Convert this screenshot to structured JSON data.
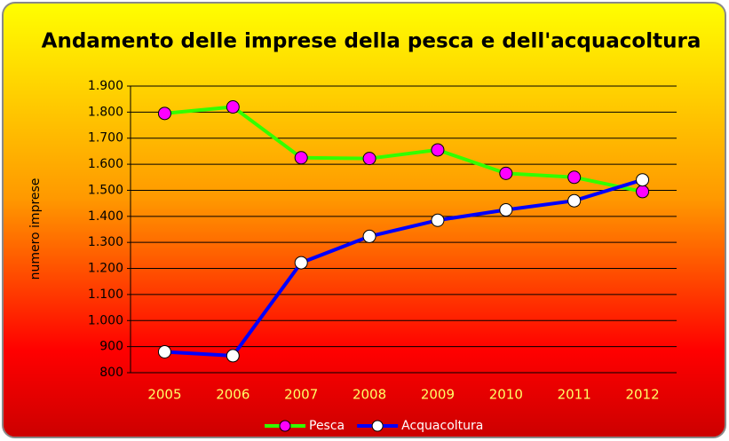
{
  "chart_data": {
    "type": "line",
    "title": "Andamento delle imprese della pesca e dell'acquacoltura",
    "y_label": "numero imprese",
    "categories": [
      "2005",
      "2006",
      "2007",
      "2008",
      "2009",
      "2010",
      "2011",
      "2012"
    ],
    "series": [
      {
        "name": "Pesca",
        "color": "#33ff00",
        "marker_color": "#ff00ff",
        "values": [
          1795,
          1820,
          1625,
          1622,
          1655,
          1565,
          1550,
          1495
        ]
      },
      {
        "name": "Acquacoltura",
        "color": "#0000ff",
        "marker_color": "#ffffff",
        "values": [
          880,
          865,
          1222,
          1323,
          1385,
          1425,
          1460,
          1540
        ]
      }
    ],
    "ylim": [
      800,
      1900
    ],
    "yticks": [
      800,
      900,
      {
        "value": 1000,
        "label": "1.000"
      },
      {
        "value": 1100,
        "label": "1.100"
      },
      {
        "value": 1200,
        "label": "1.200"
      },
      {
        "value": 1300,
        "label": "1.300"
      },
      {
        "value": 1400,
        "label": "1.400"
      },
      {
        "value": 1500,
        "label": "1.500"
      },
      {
        "value": 1600,
        "label": "1.600"
      },
      {
        "value": 1700,
        "label": "1.700"
      },
      {
        "value": 1800,
        "label": "1.800"
      },
      {
        "value": 1900,
        "label": "1.900"
      }
    ],
    "grid": true,
    "legend": "bottom"
  }
}
